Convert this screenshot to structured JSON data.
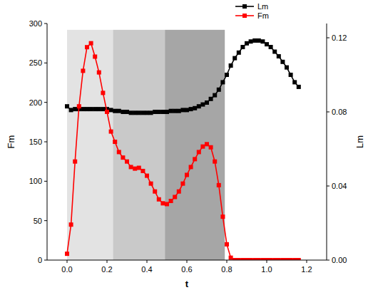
{
  "chart_data": {
    "type": "line",
    "x_label": "t",
    "y_label": "Fm",
    "y2_label": "Lm",
    "xlim": [
      -0.1,
      1.3
    ],
    "xticks": [
      {
        "value": 0,
        "label": "0.0"
      },
      0.2,
      0.4,
      0.6,
      0.8,
      {
        "value": 1,
        "label": "1.0"
      },
      1.2
    ],
    "ylim": [
      0,
      300
    ],
    "yticks": [
      0,
      50,
      100,
      150,
      200,
      250,
      300
    ],
    "y2lim": [
      0,
      0.1277
    ],
    "y2ticks": [
      {
        "value": 0,
        "label": "0.00"
      },
      0.04,
      0.08,
      0.12
    ],
    "grid": false,
    "legend": "top",
    "shaded_regions": [
      {
        "x0": 0,
        "x1": 0.23,
        "y1": 292,
        "color": "#e3e3e3"
      },
      {
        "x0": 0.23,
        "x1": 0.49,
        "y1": 292,
        "color": "#c9c9c9"
      },
      {
        "x0": 0.49,
        "x1": 0.79,
        "y1": 292,
        "color": "#a6a6a6"
      }
    ],
    "x": [
      0,
      0.02,
      0.04,
      0.06,
      0.08,
      0.1,
      0.12,
      0.14,
      0.16,
      0.18,
      0.2,
      0.22,
      0.24,
      0.26,
      0.28,
      0.3,
      0.32,
      0.34,
      0.36,
      0.38,
      0.4,
      0.42,
      0.44,
      0.46,
      0.48,
      0.5,
      0.52,
      0.54,
      0.56,
      0.58,
      0.6,
      0.62,
      0.64,
      0.66,
      0.68,
      0.7,
      0.72,
      0.74,
      0.76,
      0.78,
      0.8,
      0.82,
      0.84,
      0.86,
      0.88,
      0.9,
      0.92,
      0.94,
      0.96,
      0.98,
      1,
      1.02,
      1.04,
      1.06,
      1.08,
      1.1,
      1.12,
      1.14,
      1.16
    ],
    "series": [
      {
        "name": "Lm",
        "color": "#000000",
        "marker": "square",
        "line_style": "solid",
        "axis": "y2",
        "values": [
          0.083,
          0.081,
          0.0815,
          0.0815,
          0.0815,
          0.0815,
          0.0815,
          0.0815,
          0.0815,
          0.0815,
          0.0815,
          0.081,
          0.0805,
          0.0805,
          0.08,
          0.08,
          0.0795,
          0.0795,
          0.0795,
          0.0795,
          0.0795,
          0.0795,
          0.08,
          0.08,
          0.08,
          0.08,
          0.0805,
          0.0805,
          0.0805,
          0.081,
          0.081,
          0.0815,
          0.082,
          0.083,
          0.084,
          0.085,
          0.087,
          0.089,
          0.092,
          0.096,
          0.1,
          0.105,
          0.109,
          0.112,
          0.115,
          0.117,
          0.118,
          0.1185,
          0.1185,
          0.118,
          0.1165,
          0.115,
          0.1125,
          0.11,
          0.107,
          0.104,
          0.1,
          0.096,
          0.0935
        ]
      },
      {
        "name": "Fm",
        "color": "#ff0000",
        "marker": "square",
        "line_style": "solid",
        "values": [
          8,
          45,
          125,
          195,
          240,
          270,
          275,
          258,
          238,
          212,
          188,
          163,
          150,
          137,
          130,
          125,
          118,
          116,
          117,
          113,
          107,
          97,
          87,
          77,
          72,
          71,
          75,
          80,
          87,
          97,
          108,
          118,
          128,
          137,
          144,
          147,
          143,
          125,
          95,
          55,
          20,
          3,
          0,
          0,
          0,
          0,
          0,
          0,
          0,
          0,
          0,
          0,
          0,
          0,
          0,
          0,
          0,
          0,
          0
        ]
      }
    ]
  }
}
